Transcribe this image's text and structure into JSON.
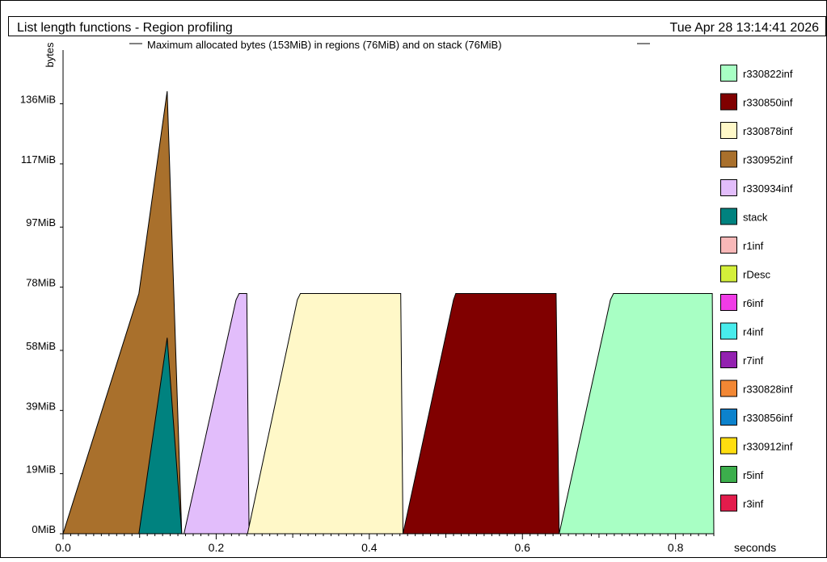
{
  "header": {
    "title": "List length functions - Region profiling",
    "date": "Tue Apr 28 13:14:41 2026"
  },
  "chart_data": {
    "type": "area",
    "subtitle": "Maximum allocated bytes (153MiB) in regions (76MiB) and on stack (76MiB)",
    "ylabel": "bytes",
    "xlabel": "seconds",
    "xlim": [
      0,
      0.85
    ],
    "ylim": [
      0,
      153
    ],
    "y_ticks": [
      {
        "value": 0,
        "label": "0MiB"
      },
      {
        "value": 19,
        "label": "19MiB"
      },
      {
        "value": 39,
        "label": "39MiB"
      },
      {
        "value": 58,
        "label": "58MiB"
      },
      {
        "value": 78,
        "label": "78MiB"
      },
      {
        "value": 97,
        "label": "97MiB"
      },
      {
        "value": 117,
        "label": "117MiB"
      },
      {
        "value": 136,
        "label": "136MiB"
      }
    ],
    "x_ticks": [
      {
        "value": 0.0,
        "label": "0.0"
      },
      {
        "value": 0.2,
        "label": "0.2"
      },
      {
        "value": 0.4,
        "label": "0.4"
      },
      {
        "value": 0.6,
        "label": "0.6"
      },
      {
        "value": 0.8,
        "label": "0.8"
      }
    ],
    "series": [
      {
        "name": "r330952inf",
        "color": "#a9702c",
        "points": [
          [
            0.0,
            0
          ],
          [
            0.099,
            76
          ],
          [
            0.136,
            140
          ],
          [
            0.155,
            0
          ]
        ]
      },
      {
        "name": "stack",
        "color": "#00827f",
        "points": [
          [
            0.099,
            0
          ],
          [
            0.136,
            62
          ],
          [
            0.155,
            0
          ]
        ]
      },
      {
        "name": "r330934inf",
        "color": "#e2bdfb",
        "points": [
          [
            0.158,
            0
          ],
          [
            0.226,
            74
          ],
          [
            0.23,
            76
          ],
          [
            0.24,
            76
          ],
          [
            0.243,
            0
          ]
        ]
      },
      {
        "name": "r330878inf",
        "color": "#fff8c8",
        "points": [
          [
            0.241,
            0
          ],
          [
            0.306,
            74
          ],
          [
            0.31,
            76
          ],
          [
            0.441,
            76
          ],
          [
            0.444,
            0
          ]
        ]
      },
      {
        "name": "r330850inf",
        "color": "#800000",
        "points": [
          [
            0.444,
            0
          ],
          [
            0.51,
            74
          ],
          [
            0.513,
            76
          ],
          [
            0.644,
            76
          ],
          [
            0.648,
            0
          ]
        ]
      },
      {
        "name": "r330822inf",
        "color": "#a8ffc4",
        "points": [
          [
            0.648,
            0
          ],
          [
            0.715,
            74
          ],
          [
            0.719,
            76
          ],
          [
            0.848,
            76
          ],
          [
            0.85,
            0
          ]
        ]
      }
    ],
    "legend": [
      {
        "name": "r330822inf",
        "color": "#a8ffc4"
      },
      {
        "name": "r330850inf",
        "color": "#800000"
      },
      {
        "name": "r330878inf",
        "color": "#fff8c8"
      },
      {
        "name": "r330952inf",
        "color": "#a9702c"
      },
      {
        "name": "r330934inf",
        "color": "#e2bdfb"
      },
      {
        "name": "stack",
        "color": "#00827f"
      },
      {
        "name": "r1inf",
        "color": "#f8b8b8"
      },
      {
        "name": "rDesc",
        "color": "#d4ef3a"
      },
      {
        "name": "r6inf",
        "color": "#f03ce6"
      },
      {
        "name": "r4inf",
        "color": "#48ecec"
      },
      {
        "name": "r7inf",
        "color": "#9322b0"
      },
      {
        "name": "r330828inf",
        "color": "#f28734"
      },
      {
        "name": "r330856inf",
        "color": "#0c82cc"
      },
      {
        "name": "r330912inf",
        "color": "#ffde10"
      },
      {
        "name": "r5inf",
        "color": "#3cae4c"
      },
      {
        "name": "r3inf",
        "color": "#e31c4c"
      }
    ]
  }
}
